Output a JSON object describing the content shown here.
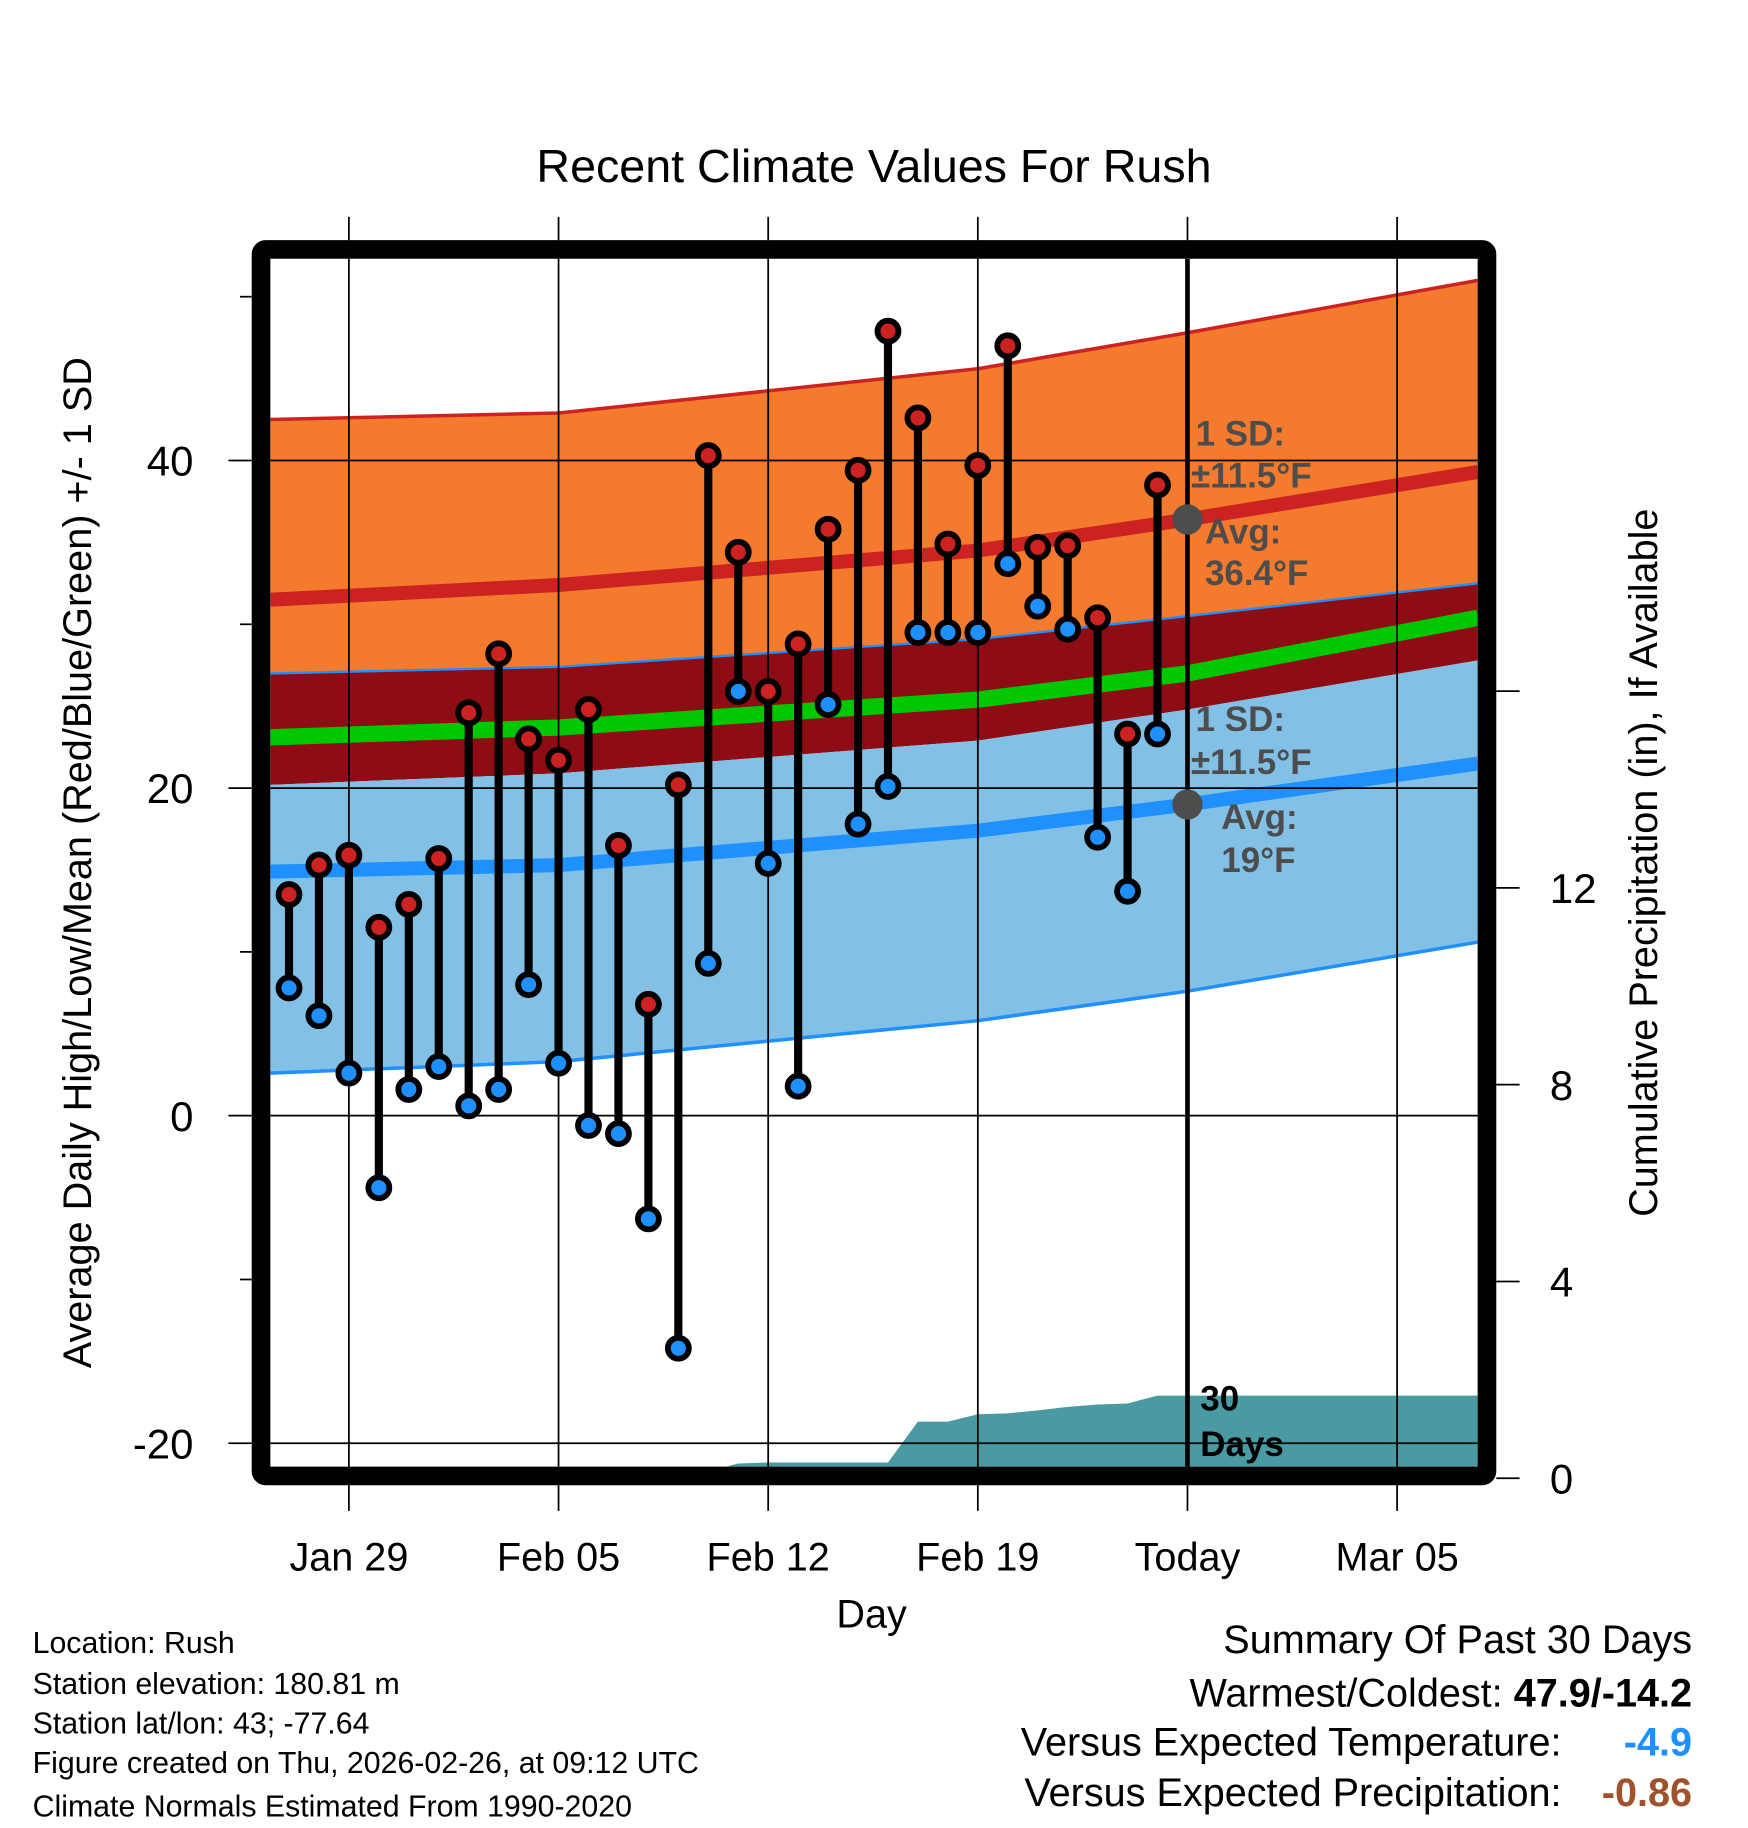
{
  "chart_data": {
    "type": "line",
    "title": "Recent Climate Values For Rush",
    "xlabel": "Day",
    "ylabel": "Average Daily High/Low/Mean (Red/Blue/Green) +/- 1 SD",
    "y2label": "Cumulative Precipitation (in), If Available",
    "ylim": [
      -21.4,
      52.3
    ],
    "y2lim": [
      0,
      17.2
    ],
    "yticks": [
      "40",
      "20",
      "0",
      "-20"
    ],
    "ytick_values": [
      40,
      20,
      0,
      -20
    ],
    "y2ticks": [
      "12",
      "8",
      "4",
      "0"
    ],
    "y2tick_values": [
      12,
      8,
      4,
      0
    ],
    "xticks": [
      "Jan 29",
      "Feb 05",
      "Feb 12",
      "Feb 19",
      "Today",
      "Mar 05"
    ],
    "xtick_days": [
      2,
      9,
      16,
      23,
      30,
      37
    ],
    "x_day0": "Jan 27",
    "dates": [
      "Jan 27",
      "Jan 28",
      "Jan 29",
      "Jan 30",
      "Jan 31",
      "Feb 01",
      "Feb 02",
      "Feb 03",
      "Feb 04",
      "Feb 05",
      "Feb 06",
      "Feb 07",
      "Feb 08",
      "Feb 09",
      "Feb 10",
      "Feb 11",
      "Feb 12",
      "Feb 13",
      "Feb 14",
      "Feb 15",
      "Feb 16",
      "Feb 17",
      "Feb 18",
      "Feb 19",
      "Feb 20",
      "Feb 21",
      "Feb 22",
      "Feb 23",
      "Feb 24",
      "Feb 25"
    ],
    "series": [
      {
        "name": "Daily High",
        "color": "#cc2222",
        "values": [
          13.5,
          15.3,
          15.9,
          11.5,
          12.9,
          15.7,
          24.6,
          28.2,
          23.0,
          21.7,
          24.8,
          16.5,
          6.8,
          20.2,
          40.3,
          34.4,
          25.9,
          28.8,
          35.8,
          39.4,
          47.9,
          42.6,
          34.9,
          39.7,
          47.0,
          34.7,
          34.8,
          30.4,
          23.3,
          38.5
        ]
      },
      {
        "name": "Daily Low",
        "color": "#1e90ff",
        "values": [
          7.8,
          6.1,
          2.6,
          -4.4,
          1.6,
          3.0,
          0.6,
          1.6,
          8.0,
          3.2,
          -0.6,
          -1.1,
          -6.3,
          -14.2,
          9.3,
          25.9,
          15.4,
          1.8,
          25.1,
          17.8,
          20.1,
          29.5,
          29.5,
          29.5,
          33.7,
          31.1,
          29.7,
          17.0,
          13.7,
          23.3
        ]
      },
      {
        "name": "Cumulative Precipitation",
        "color": "#4a9aa3",
        "values": [
          0,
          0,
          0,
          0,
          0,
          0,
          0,
          0,
          0,
          0,
          0,
          0,
          0.02,
          0.03,
          0.1,
          0.3,
          0.32,
          0.32,
          0.32,
          0.32,
          0.32,
          1.15,
          1.15,
          1.3,
          1.32,
          1.38,
          1.45,
          1.5,
          1.52,
          1.68
        ]
      }
    ],
    "normals": {
      "days": [
        -0.62,
        9,
        23,
        30,
        39.7
      ],
      "high_upper_sd": [
        42.5,
        42.9,
        45.6,
        47.8,
        51.0
      ],
      "high_avg": [
        31.5,
        32.4,
        34.5,
        36.4,
        39.3
      ],
      "high_lower_sd": [
        27.0,
        27.4,
        29.1,
        30.5,
        32.5
      ],
      "mean": [
        23.1,
        23.7,
        25.4,
        27.0,
        30.4
      ],
      "low_upper_sd": [
        20.2,
        20.9,
        22.9,
        24.8,
        27.8
      ],
      "low_avg": [
        14.9,
        15.3,
        17.4,
        19.0,
        21.5
      ],
      "low_lower_sd": [
        2.6,
        3.3,
        5.8,
        7.6,
        10.6
      ]
    },
    "today_high_avg": 36.4,
    "today_low_avg": 19.0,
    "annotations": {
      "high_sd_line1": "1 SD:",
      "high_sd_line2": "±11.5°F",
      "high_avg_line1": "Avg:",
      "high_avg_line2": "36.4°F",
      "low_sd_line1": "1 SD:",
      "low_sd_line2": "±11.5°F",
      "low_avg_line1": "Avg:",
      "low_avg_line2": "19°F",
      "precip_line1": "30",
      "precip_line2": "Days"
    },
    "colors": {
      "high_band": "#f47a2d",
      "high_avg": "#cc2222",
      "mean_band": "#8e0c14",
      "mean": "#00c800",
      "low_band": "#82c0e6",
      "low_avg": "#1e90ff",
      "precip": "#4a9aa3",
      "marker_text": "#4d4d4d"
    },
    "grid": true
  },
  "footer": {
    "location": "Location: Rush",
    "elevation": "Station elevation: 180.81 m",
    "latlon": "Station lat/lon: 43; -77.64",
    "created": "Figure created on Thu, 2026-02-26, at 09:12 UTC",
    "normals": "Climate Normals Estimated From 1990-2020"
  },
  "summary": {
    "title": "Summary Of Past 30 Days",
    "warmest_coldest_label": "Warmest/Coldest:",
    "warmest_coldest_value": "47.9/-14.2",
    "temp_label": "Versus Expected Temperature:",
    "temp_value": "-4.9",
    "temp_color": "#1e90ff",
    "precip_label": "Versus Expected Precipitation:",
    "precip_value": "-0.86",
    "precip_color": "#a0522d"
  }
}
